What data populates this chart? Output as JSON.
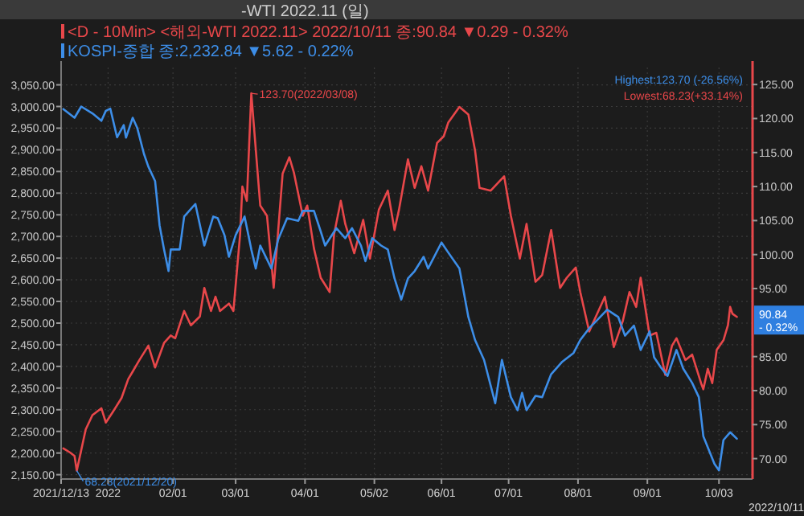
{
  "chart_data": {
    "type": "line",
    "title": "-WTI 2022.11 (일)",
    "legend": "top left",
    "grid": true,
    "xlim": [
      "2021-12-13",
      "2022-10-18"
    ],
    "xticks": [
      {
        "value": "2021-12-13",
        "label": "2021/12/13"
      },
      {
        "value": "2022-01-03",
        "label": "2022"
      },
      {
        "value": "2022-02-01",
        "label": "02/01"
      },
      {
        "value": "2022-03-01",
        "label": "03/01"
      },
      {
        "value": "2022-04-01",
        "label": "04/01"
      },
      {
        "value": "2022-05-02",
        "label": "05/02"
      },
      {
        "value": "2022-06-01",
        "label": "06/01"
      },
      {
        "value": "2022-07-01",
        "label": "07/01"
      },
      {
        "value": "2022-08-01",
        "label": "08/01"
      },
      {
        "value": "2022-09-01",
        "label": "09/01"
      },
      {
        "value": "2022-10-03",
        "label": "10/03"
      }
    ],
    "ylim": [
      2140,
      3090
    ],
    "yticks": [
      {
        "value": 2150,
        "label": "2,150.00"
      },
      {
        "value": 2200,
        "label": "2,200.00"
      },
      {
        "value": 2250,
        "label": "2,250.00"
      },
      {
        "value": 2300,
        "label": "2,300.00"
      },
      {
        "value": 2350,
        "label": "2,350.00"
      },
      {
        "value": 2400,
        "label": "2,400.00"
      },
      {
        "value": 2450,
        "label": "2,450.00"
      },
      {
        "value": 2500,
        "label": "2,500.00"
      },
      {
        "value": 2550,
        "label": "2,550.00"
      },
      {
        "value": 2600,
        "label": "2,600.00"
      },
      {
        "value": 2650,
        "label": "2,650.00"
      },
      {
        "value": 2700,
        "label": "2,700.00"
      },
      {
        "value": 2750,
        "label": "2,750.00"
      },
      {
        "value": 2800,
        "label": "2,800.00"
      },
      {
        "value": 2850,
        "label": "2,850.00"
      },
      {
        "value": 2900,
        "label": "2,900.00"
      },
      {
        "value": 2950,
        "label": "2,950.00"
      },
      {
        "value": 3000,
        "label": "3,000.00"
      },
      {
        "value": 3050,
        "label": "3,050.00"
      }
    ],
    "y2lim": [
      67,
      127.5
    ],
    "y2ticks": [
      {
        "value": 70,
        "label": "70.00"
      },
      {
        "value": 75,
        "label": "75.00"
      },
      {
        "value": 80,
        "label": "80.00"
      },
      {
        "value": 85,
        "label": "85.00"
      },
      {
        "value": 95,
        "label": "95.00"
      },
      {
        "value": 100,
        "label": "100.00"
      },
      {
        "value": 105,
        "label": "105.00"
      },
      {
        "value": 110,
        "label": "110.00"
      },
      {
        "value": 115,
        "label": "115.00"
      },
      {
        "value": 120,
        "label": "120.00"
      },
      {
        "value": 125,
        "label": "125.00"
      }
    ],
    "annotations": [
      "Highest:123.70 (-26.56%)",
      "Lowest:68.23(+33.14%)",
      "123.70(2022/03/08)",
      "68.23(2021/12/20)",
      "90.84",
      "- 0.32%",
      "2022/10/11"
    ],
    "series": [
      {
        "name": "<D - 10Min> <해외-WTI 2022.11> 2022/10/11 종:90.84 ▼0.29 - 0.32%",
        "color": "#e8474a",
        "axis": "y2",
        "x": [
          "2021-12-14",
          "2021-12-17",
          "2021-12-19",
          "2021-12-20",
          "2021-12-24",
          "2021-12-27",
          "2021-12-31",
          "2022-01-02",
          "2022-01-05",
          "2022-01-09",
          "2022-01-12",
          "2022-01-14",
          "2022-01-17",
          "2022-01-21",
          "2022-01-24",
          "2022-01-28",
          "2022-01-31",
          "2022-02-02",
          "2022-02-06",
          "2022-02-09",
          "2022-02-13",
          "2022-02-15",
          "2022-02-18",
          "2022-02-20",
          "2022-02-22",
          "2022-02-26",
          "2022-02-28",
          "2022-03-03",
          "2022-03-04",
          "2022-03-06",
          "2022-03-08",
          "2022-03-12",
          "2022-03-15",
          "2022-03-17",
          "2022-03-18",
          "2022-03-22",
          "2022-03-25",
          "2022-03-27",
          "2022-03-31",
          "2022-04-02",
          "2022-04-05",
          "2022-04-08",
          "2022-04-12",
          "2022-04-14",
          "2022-04-17",
          "2022-04-19",
          "2022-04-23",
          "2022-04-27",
          "2022-04-30",
          "2022-05-04",
          "2022-05-08",
          "2022-05-11",
          "2022-05-13",
          "2022-05-17",
          "2022-05-20",
          "2022-05-23",
          "2022-05-26",
          "2022-05-30",
          "2022-06-02",
          "2022-06-04",
          "2022-06-09",
          "2022-06-13",
          "2022-06-16",
          "2022-06-18",
          "2022-06-23",
          "2022-06-29",
          "2022-07-02",
          "2022-07-06",
          "2022-07-09",
          "2022-07-13",
          "2022-07-16",
          "2022-07-20",
          "2022-07-24",
          "2022-07-27",
          "2022-07-31",
          "2022-08-02",
          "2022-08-06",
          "2022-08-09",
          "2022-08-13",
          "2022-08-17",
          "2022-08-21",
          "2022-08-24",
          "2022-08-27",
          "2022-08-29",
          "2022-09-02",
          "2022-09-05",
          "2022-09-09",
          "2022-09-12",
          "2022-09-14",
          "2022-09-18",
          "2022-09-21",
          "2022-09-25",
          "2022-09-26",
          "2022-09-28",
          "2022-09-30",
          "2022-10-02",
          "2022-10-05",
          "2022-10-07",
          "2022-10-08",
          "2022-10-09",
          "2022-10-11"
        ],
        "values": [
          71.5,
          70.9,
          70.4,
          68.23,
          74.3,
          76.4,
          77.4,
          75.3,
          76.8,
          78.9,
          81.7,
          82.8,
          84.5,
          86.6,
          83.4,
          87.0,
          88.1,
          87.7,
          91.7,
          89.6,
          90.9,
          95.1,
          91.7,
          93.8,
          91.7,
          92.8,
          91.7,
          103.0,
          110.0,
          107.9,
          123.7,
          107.2,
          105.7,
          98.7,
          95.1,
          111.9,
          114.3,
          112.1,
          105.7,
          107.2,
          100.9,
          96.6,
          94.5,
          103.0,
          107.9,
          104.5,
          100.2,
          105.1,
          99.4,
          106.6,
          109.4,
          103.6,
          106.6,
          114.0,
          109.8,
          113.0,
          109.4,
          116.4,
          117.4,
          119.4,
          121.7,
          120.6,
          115.3,
          109.8,
          109.4,
          111.5,
          105.7,
          99.4,
          104.5,
          96.0,
          97.0,
          103.6,
          95.1,
          96.6,
          98.1,
          94.5,
          88.7,
          90.9,
          93.8,
          86.4,
          90.2,
          94.5,
          92.3,
          96.6,
          88.1,
          88.5,
          82.3,
          86.6,
          87.7,
          84.5,
          85.3,
          81.1,
          80.2,
          83.2,
          81.1,
          86.0,
          87.4,
          89.6,
          92.3,
          91.3,
          90.84
        ]
      },
      {
        "name": "KOSPI-종합 종:2,232.84 ▼5.62 - 0.22%",
        "color": "#3d8ee8",
        "x": [
          "2021-12-14",
          "2021-12-19",
          "2021-12-22",
          "2021-12-27",
          "2021-12-31",
          "2022-01-02",
          "2022-01-04",
          "2022-01-07",
          "2022-01-10",
          "2022-01-11",
          "2022-01-14",
          "2022-01-16",
          "2022-01-19",
          "2022-01-21",
          "2022-01-24",
          "2022-01-26",
          "2022-01-28",
          "2022-01-30",
          "2022-01-31",
          "2022-02-04",
          "2022-02-06",
          "2022-02-11",
          "2022-02-15",
          "2022-02-19",
          "2022-02-21",
          "2022-02-24",
          "2022-02-26",
          "2022-03-01",
          "2022-03-05",
          "2022-03-08",
          "2022-03-10",
          "2022-03-12",
          "2022-03-17",
          "2022-03-20",
          "2022-03-24",
          "2022-03-29",
          "2022-03-31",
          "2022-04-05",
          "2022-04-08",
          "2022-04-10",
          "2022-04-15",
          "2022-04-19",
          "2022-04-22",
          "2022-04-26",
          "2022-04-28",
          "2022-05-01",
          "2022-05-05",
          "2022-05-08",
          "2022-05-11",
          "2022-05-14",
          "2022-05-17",
          "2022-05-20",
          "2022-05-24",
          "2022-05-26",
          "2022-06-01",
          "2022-06-04",
          "2022-06-09",
          "2022-06-13",
          "2022-06-16",
          "2022-06-20",
          "2022-06-25",
          "2022-06-28",
          "2022-07-02",
          "2022-07-05",
          "2022-07-07",
          "2022-07-09",
          "2022-07-13",
          "2022-07-16",
          "2022-07-20",
          "2022-07-25",
          "2022-07-30",
          "2022-08-02",
          "2022-08-06",
          "2022-08-09",
          "2022-08-14",
          "2022-08-19",
          "2022-08-22",
          "2022-08-26",
          "2022-08-29",
          "2022-09-02",
          "2022-09-04",
          "2022-09-07",
          "2022-09-10",
          "2022-09-14",
          "2022-09-17",
          "2022-09-21",
          "2022-09-24",
          "2022-09-26",
          "2022-10-01",
          "2022-10-03",
          "2022-10-05",
          "2022-10-08",
          "2022-10-11"
        ],
        "values": [
          2994,
          2974,
          3000,
          2984,
          2967,
          2990,
          2995,
          2929,
          2957,
          2928,
          2974,
          2951,
          2891,
          2861,
          2828,
          2726,
          2670,
          2620,
          2670,
          2670,
          2746,
          2775,
          2679,
          2746,
          2742,
          2703,
          2653,
          2703,
          2746,
          2670,
          2626,
          2679,
          2626,
          2693,
          2742,
          2736,
          2759,
          2759,
          2712,
          2679,
          2719,
          2696,
          2719,
          2679,
          2643,
          2696,
          2679,
          2670,
          2603,
          2554,
          2603,
          2620,
          2653,
          2626,
          2686,
          2663,
          2626,
          2514,
          2461,
          2415,
          2315,
          2415,
          2329,
          2299,
          2339,
          2299,
          2332,
          2329,
          2382,
          2411,
          2431,
          2461,
          2488,
          2504,
          2531,
          2514,
          2471,
          2494,
          2438,
          2481,
          2421,
          2398,
          2378,
          2438,
          2395,
          2362,
          2329,
          2239,
          2175,
          2160,
          2230,
          2248,
          2233
        ]
      }
    ]
  }
}
